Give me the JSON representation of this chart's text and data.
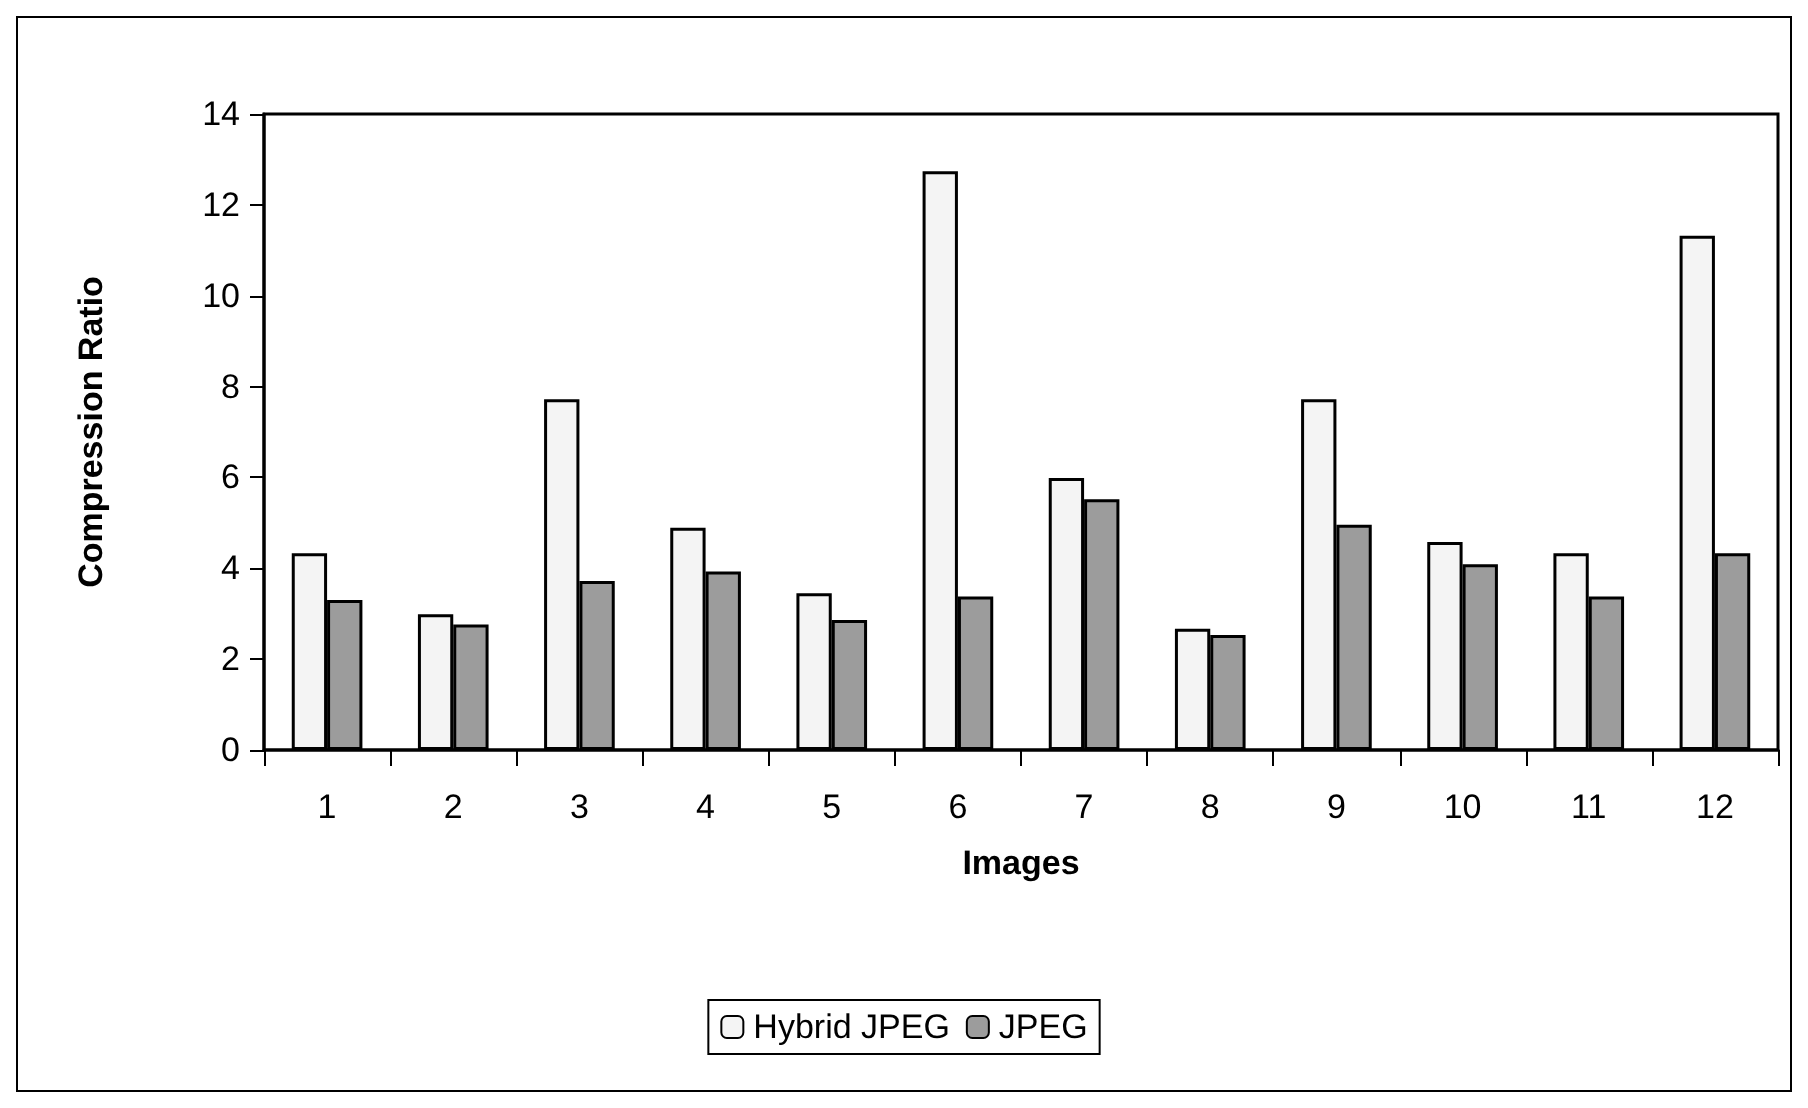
{
  "chart_data": {
    "type": "bar",
    "xlabel": "Images",
    "ylabel": "Compression Ratio",
    "categories": [
      "1",
      "2",
      "3",
      "4",
      "5",
      "6",
      "7",
      "8",
      "9",
      "10",
      "11",
      "12"
    ],
    "series": [
      {
        "name": "Hybrid JPEG",
        "color": "#f4f4f4",
        "values": [
          4.33,
          2.99,
          7.72,
          4.89,
          3.45,
          12.74,
          5.99,
          2.67,
          7.72,
          4.58,
          4.33,
          11.32
        ]
      },
      {
        "name": "JPEG",
        "color": "#9c9c9c",
        "values": [
          3.3,
          2.76,
          3.72,
          3.93,
          2.86,
          3.38,
          5.52,
          2.53,
          4.96,
          4.09,
          3.38,
          4.33
        ]
      }
    ],
    "ylim": [
      0,
      14
    ],
    "yticks": [
      0,
      2,
      4,
      6,
      8,
      10,
      12,
      14
    ],
    "grid": false,
    "legend": "bottom"
  }
}
